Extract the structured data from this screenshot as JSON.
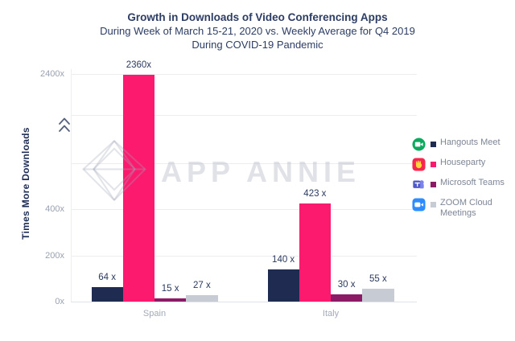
{
  "title": {
    "line1": "Growth in Downloads of Video Conferencing Apps",
    "line2": "During Week of March 15-21, 2020 vs. Weekly Average for Q4 2019",
    "line3": "During COVID-19 Pandemic"
  },
  "y_axis": {
    "title": "Times More Downloads"
  },
  "watermark": {
    "text": "APP ANNIE",
    "icon": "diamond-logo-icon"
  },
  "chart_data": {
    "type": "bar",
    "title": "Growth in Downloads of Video Conferencing Apps",
    "subtitle": "During Week of March 15-21, 2020 vs. Weekly Average for Q4 2019 During COVID-19 Pandemic",
    "ylabel": "Times More Downloads",
    "categories": [
      "Spain",
      "Italy"
    ],
    "series": [
      {
        "name": "Hangouts Meet",
        "icon": "hangouts-meet-icon",
        "color": "#1f2b50",
        "values": [
          64,
          140
        ],
        "value_labels": [
          "64 x",
          "140 x"
        ]
      },
      {
        "name": "Houseparty",
        "icon": "houseparty-icon",
        "color": "#fb1a6e",
        "values": [
          2360,
          423
        ],
        "value_labels": [
          "2360x",
          "423 x"
        ]
      },
      {
        "name": "Microsoft Teams",
        "icon": "microsoft-teams-icon",
        "color": "#8c1a66",
        "values": [
          15,
          30
        ],
        "value_labels": [
          "15 x",
          "30 x"
        ]
      },
      {
        "name": "ZOOM Cloud Meetings",
        "icon": "zoom-cloud-meetings-icon",
        "color": "#c6cbd4",
        "values": [
          27,
          55
        ],
        "value_labels": [
          "27 x",
          "55 x"
        ]
      }
    ],
    "y_ticks": [
      {
        "label": "0x",
        "value": 0
      },
      {
        "label": "200x",
        "value": 200
      },
      {
        "label": "400x",
        "value": 400
      },
      {
        "label": "2400x",
        "value": 2400
      }
    ],
    "axis_break": {
      "between": [
        600,
        2400
      ]
    },
    "grid": true,
    "legend_position": "right",
    "colors": {
      "title_text": "#2d3d63",
      "tick_text": "#99a1b0",
      "value_text": "#2b3a5e",
      "legend_text": "#7d8695",
      "gridline": "#ededf1"
    }
  }
}
